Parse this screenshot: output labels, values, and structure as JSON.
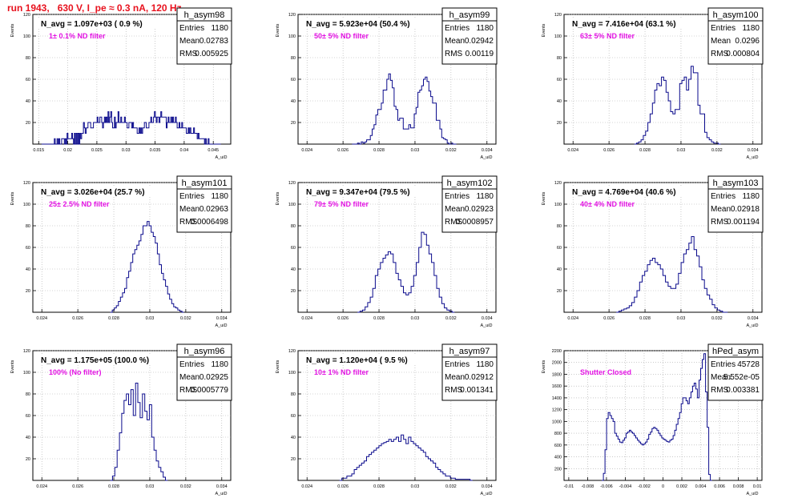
{
  "page": {
    "title": "run 1943,   630 V, I_pe ≈ 0.3 nA, 120 Hz"
  },
  "colors": {
    "histogram": "#0a0a8c",
    "annotation": "#e212e2",
    "title": "#e8121e",
    "grid": "#aaaaaa",
    "axis": "#000000"
  },
  "chart_data": [
    {
      "type": "histogram",
      "name": "h_asym98",
      "title": "N_avg = 1.097e+03 ( 0.9 %)",
      "note": "1± 0.1% ND filter",
      "ylabel": "Events",
      "xlabel": "A_uiD",
      "xlim": [
        0.014,
        0.048
      ],
      "ylim": [
        0,
        120
      ],
      "xticks": [
        0.015,
        0.02,
        0.025,
        0.03,
        0.035,
        0.04,
        0.045
      ],
      "xticklabels": [
        "0.015",
        "0.02",
        "0.025",
        "0.03",
        "0.035",
        "0.04",
        "0.045"
      ],
      "yticks": [
        20,
        40,
        60,
        80,
        100,
        120
      ],
      "yticklabels": [
        "20",
        "40",
        "60",
        "80",
        "100",
        "120"
      ],
      "stats": [
        {
          "label": "Entries",
          "value": "1180"
        },
        {
          "label": "Mean",
          "value": "0.02783"
        },
        {
          "label": "RMS",
          "value": "0.005925"
        }
      ],
      "bin_edges": [
        0.0155,
        0.0463
      ],
      "values": [
        0,
        0,
        0,
        0,
        0,
        0,
        0,
        0,
        0,
        0,
        0,
        0,
        0,
        0,
        5,
        0,
        0,
        5,
        0,
        5,
        0,
        0,
        5,
        5,
        5,
        0,
        5,
        0,
        10,
        5,
        5,
        5,
        5,
        10,
        5,
        0,
        10,
        0,
        10,
        0,
        10,
        0,
        10,
        5,
        10,
        10,
        20,
        15,
        10,
        15,
        15,
        20,
        20,
        20,
        15,
        15,
        15,
        20,
        20,
        20,
        20,
        25,
        20,
        20,
        25,
        25,
        20,
        15,
        20,
        25,
        20,
        25,
        20,
        30,
        20,
        25,
        30,
        20,
        15,
        15,
        25,
        15,
        20,
        20,
        30,
        20,
        20,
        25,
        20,
        20,
        20,
        25,
        20,
        20,
        15,
        15,
        20,
        20,
        20,
        15,
        20,
        15,
        15,
        15,
        15,
        10,
        10,
        15,
        10,
        15,
        10,
        15,
        15,
        20,
        20,
        15,
        15,
        15,
        20,
        20,
        25,
        20,
        20,
        25,
        30,
        25,
        20,
        25,
        25,
        20,
        25,
        30,
        25,
        25,
        25,
        25,
        25,
        15,
        20,
        25,
        20,
        20,
        25,
        20,
        25,
        20,
        20,
        25,
        20,
        15,
        15,
        20,
        15,
        15,
        20,
        15,
        15,
        15,
        15,
        10,
        10,
        15,
        10,
        15,
        10,
        10,
        10,
        15,
        10,
        10,
        10,
        5,
        10,
        5,
        5,
        5,
        5,
        5,
        5,
        0,
        5,
        0,
        0,
        5,
        0,
        0,
        0,
        0,
        0,
        0,
        0,
        0,
        0,
        0,
        0,
        0,
        0
      ]
    },
    {
      "type": "histogram",
      "name": "h_asym99",
      "title": "N_avg = 5.923e+04 (50.4 %)",
      "note": "50± 5% ND filter",
      "ylabel": "Events",
      "xlabel": "A_uiD",
      "xlim": [
        0.0235,
        0.0345
      ],
      "ylim": [
        0,
        120
      ],
      "xticks": [
        0.024,
        0.026,
        0.028,
        0.03,
        0.032,
        0.034
      ],
      "xticklabels": [
        "0.024",
        "0.026",
        "0.028",
        "0.03",
        "0.032",
        "0.034"
      ],
      "yticks": [
        20,
        40,
        60,
        80,
        100,
        120
      ],
      "yticklabels": [
        "20",
        "40",
        "60",
        "80",
        "100",
        "120"
      ],
      "stats": [
        {
          "label": "Entries",
          "value": "1180"
        },
        {
          "label": "Mean",
          "value": "0.02942"
        },
        {
          "label": "RMS",
          "value": "0.00119"
        }
      ],
      "bin_edges": [
        0.0265,
        0.0323
      ],
      "values": [
        0,
        0,
        0,
        1,
        0,
        2,
        1,
        2,
        4,
        4,
        8,
        14,
        18,
        27,
        32,
        32,
        38,
        50,
        50,
        60,
        65,
        59,
        52,
        35,
        32,
        22,
        24,
        24,
        14,
        14,
        14,
        18,
        15,
        15,
        28,
        34,
        48,
        50,
        54,
        60,
        62,
        58,
        49,
        44,
        38,
        38,
        22,
        22,
        14,
        6,
        5,
        4,
        1,
        0,
        1,
        0,
        0
      ]
    },
    {
      "type": "histogram",
      "name": "h_asym100",
      "title": "N_avg = 7.416e+04 (63.1 %)",
      "note": "63± 5% ND filter",
      "ylabel": "Events",
      "xlabel": "A_uiD",
      "xlim": [
        0.0235,
        0.0345
      ],
      "ylim": [
        0,
        120
      ],
      "xticks": [
        0.024,
        0.026,
        0.028,
        0.03,
        0.032,
        0.034
      ],
      "xticklabels": [
        "0.024",
        "0.026",
        "0.028",
        "0.03",
        "0.032",
        "0.034"
      ],
      "yticks": [
        20,
        40,
        60,
        80,
        100,
        120
      ],
      "yticklabels": [
        "20",
        "40",
        "60",
        "80",
        "100",
        "120"
      ],
      "stats": [
        {
          "label": "Entries",
          "value": "1180"
        },
        {
          "label": "Mean",
          "value": "0.0296"
        },
        {
          "label": "RMS",
          "value": "0.000804"
        }
      ],
      "bin_edges": [
        0.0274,
        0.0322
      ],
      "values": [
        0,
        1,
        2,
        4,
        8,
        12,
        20,
        28,
        38,
        50,
        56,
        54,
        62,
        59,
        48,
        40,
        30,
        28,
        32,
        32,
        56,
        59,
        62,
        50,
        60,
        72,
        66,
        66,
        36,
        28,
        28,
        11,
        6,
        4,
        2,
        1,
        1,
        0
      ]
    },
    {
      "type": "histogram",
      "name": "h_asym101",
      "title": "N_avg = 3.026e+04 (25.7 %)",
      "note": "25± 2.5% ND filter",
      "ylabel": "Events",
      "xlabel": "A_uiD",
      "xlim": [
        0.0235,
        0.0345
      ],
      "ylim": [
        0,
        120
      ],
      "xticks": [
        0.024,
        0.026,
        0.028,
        0.03,
        0.032,
        0.034
      ],
      "xticklabels": [
        "0.024",
        "0.026",
        "0.028",
        "0.03",
        "0.032",
        "0.034"
      ],
      "yticks": [
        20,
        40,
        60,
        80,
        100,
        120
      ],
      "yticklabels": [
        "20",
        "40",
        "60",
        "80",
        "100",
        "120"
      ],
      "stats": [
        {
          "label": "Entries",
          "value": "1180"
        },
        {
          "label": "Mean",
          "value": "0.02963"
        },
        {
          "label": "RMS",
          "value": "0.0006498"
        }
      ],
      "bin_edges": [
        0.0278,
        0.0319
      ],
      "values": [
        0,
        2,
        4,
        6,
        10,
        14,
        18,
        22,
        32,
        38,
        46,
        54,
        58,
        62,
        66,
        72,
        80,
        80,
        84,
        80,
        74,
        70,
        64,
        54,
        44,
        36,
        30,
        24,
        17,
        12,
        8,
        5,
        4,
        2,
        1,
        0
      ]
    },
    {
      "type": "histogram",
      "name": "h_asym102",
      "title": "N_avg = 9.347e+04 (79.5 %)",
      "note": "79± 5% ND filter",
      "ylabel": "Events",
      "xlabel": "A_uiD",
      "xlim": [
        0.0235,
        0.0345
      ],
      "ylim": [
        0,
        120
      ],
      "xticks": [
        0.024,
        0.026,
        0.028,
        0.03,
        0.032,
        0.034
      ],
      "xticklabels": [
        "0.024",
        "0.026",
        "0.028",
        "0.03",
        "0.032",
        "0.034"
      ],
      "yticks": [
        20,
        40,
        60,
        80,
        100,
        120
      ],
      "yticklabels": [
        "20",
        "40",
        "60",
        "80",
        "100",
        "120"
      ],
      "stats": [
        {
          "label": "Entries",
          "value": "1180"
        },
        {
          "label": "Mean",
          "value": "0.02923"
        },
        {
          "label": "RMS",
          "value": "0.0008957"
        }
      ],
      "bin_edges": [
        0.0268,
        0.0322
      ],
      "values": [
        0,
        1,
        2,
        5,
        9,
        14,
        22,
        34,
        40,
        46,
        50,
        53,
        56,
        54,
        46,
        36,
        30,
        24,
        18,
        16,
        18,
        24,
        34,
        46,
        60,
        74,
        72,
        62,
        54,
        46,
        34,
        22,
        14,
        8,
        4,
        2,
        1,
        0
      ]
    },
    {
      "type": "histogram",
      "name": "h_asym103",
      "title": "N_avg = 4.769e+04 (40.6 %)",
      "note": "40± 4% ND filter",
      "ylabel": "Events",
      "xlabel": "A_uiD",
      "xlim": [
        0.0235,
        0.0345
      ],
      "ylim": [
        0,
        120
      ],
      "xticks": [
        0.024,
        0.026,
        0.028,
        0.03,
        0.032,
        0.034
      ],
      "xticklabels": [
        "0.024",
        "0.026",
        "0.028",
        "0.03",
        "0.032",
        "0.034"
      ],
      "yticks": [
        20,
        40,
        60,
        80,
        100,
        120
      ],
      "yticklabels": [
        "20",
        "40",
        "60",
        "80",
        "100",
        "120"
      ],
      "stats": [
        {
          "label": "Entries",
          "value": "1180"
        },
        {
          "label": "Mean",
          "value": "0.02918"
        },
        {
          "label": "RMS",
          "value": "0.001194"
        }
      ],
      "bin_edges": [
        0.0264,
        0.0326
      ],
      "values": [
        0,
        1,
        2,
        3,
        4,
        6,
        9,
        14,
        20,
        28,
        34,
        38,
        44,
        48,
        50,
        46,
        44,
        40,
        34,
        28,
        24,
        22,
        22,
        26,
        36,
        46,
        54,
        58,
        64,
        70,
        58,
        52,
        42,
        30,
        22,
        16,
        12,
        7,
        4,
        2,
        1,
        0,
        0
      ]
    },
    {
      "type": "histogram",
      "name": "h_asym96",
      "title": "N_avg = 1.175e+05 (100.0 %)",
      "note": "100% (No filter)",
      "ylabel": "Events",
      "xlabel": "A_uiD",
      "xlim": [
        0.0235,
        0.0345
      ],
      "ylim": [
        0,
        120
      ],
      "xticks": [
        0.024,
        0.026,
        0.028,
        0.03,
        0.032,
        0.034
      ],
      "xticklabels": [
        "0.024",
        "0.026",
        "0.028",
        "0.03",
        "0.032",
        "0.034"
      ],
      "yticks": [
        20,
        40,
        60,
        80,
        100,
        120
      ],
      "yticklabels": [
        "20",
        "40",
        "60",
        "80",
        "100",
        "120"
      ],
      "stats": [
        {
          "label": "Entries",
          "value": "1180"
        },
        {
          "label": "Mean",
          "value": "0.02925"
        },
        {
          "label": "RMS",
          "value": "0.0005779"
        }
      ],
      "bin_edges": [
        0.0278,
        0.031
      ],
      "values": [
        0,
        4,
        12,
        28,
        44,
        62,
        74,
        80,
        70,
        84,
        60,
        90,
        72,
        58,
        80,
        64,
        56,
        70,
        40,
        28,
        18,
        12,
        8,
        3,
        0
      ]
    },
    {
      "type": "histogram",
      "name": "h_asym97",
      "title": "N_avg = 1.120e+04 ( 9.5 %)",
      "note": "10± 1% ND filter",
      "ylabel": "Events",
      "xlabel": "A_uiD",
      "xlim": [
        0.0235,
        0.0345
      ],
      "ylim": [
        0,
        120
      ],
      "xticks": [
        0.024,
        0.026,
        0.028,
        0.03,
        0.032,
        0.034
      ],
      "xticklabels": [
        "0.024",
        "0.026",
        "0.028",
        "0.03",
        "0.032",
        "0.034"
      ],
      "yticks": [
        20,
        40,
        60,
        80,
        100,
        120
      ],
      "yticklabels": [
        "20",
        "40",
        "60",
        "80",
        "100",
        "120"
      ],
      "stats": [
        {
          "label": "Entries",
          "value": "1180"
        },
        {
          "label": "Mean",
          "value": "0.02912"
        },
        {
          "label": "RMS",
          "value": "0.001341"
        }
      ],
      "bin_edges": [
        0.0258,
        0.0332
      ],
      "values": [
        0,
        2,
        2,
        4,
        4,
        6,
        10,
        12,
        14,
        16,
        18,
        22,
        24,
        26,
        28,
        30,
        32,
        34,
        35,
        36,
        38,
        36,
        38,
        40,
        36,
        42,
        38,
        34,
        40,
        36,
        34,
        32,
        30,
        28,
        26,
        22,
        20,
        18,
        16,
        12,
        10,
        8,
        6,
        4,
        4,
        2,
        2,
        1,
        1,
        1,
        1,
        1,
        1,
        0
      ]
    },
    {
      "type": "histogram",
      "name": "hPed_asym",
      "title": "",
      "note": "Shutter Closed",
      "ylabel": "Events",
      "xlabel": "A_uiD",
      "xlim": [
        -0.0105,
        0.0105
      ],
      "ylim": [
        0,
        2200
      ],
      "xticks": [
        -0.01,
        -0.008,
        -0.006,
        -0.004,
        -0.002,
        0,
        0.002,
        0.004,
        0.006,
        0.008,
        0.01
      ],
      "xticklabels": [
        "-0.01",
        "-0.008",
        "-0.006",
        "-0.004",
        "-0.002",
        "0",
        "0.002",
        "0.004",
        "0.006",
        "0.008",
        "0.01"
      ],
      "yticks": [
        200,
        400,
        600,
        800,
        1000,
        1200,
        1400,
        1600,
        1800,
        2000,
        2200
      ],
      "yticklabels": [
        "200",
        "400",
        "600",
        "800",
        "1000",
        "1200",
        "1400",
        "1600",
        "1800",
        "2000",
        "2200"
      ],
      "stats": [
        {
          "label": "Entries",
          "value": "45728"
        },
        {
          "label": "Mean",
          "value": "5.552e-05"
        },
        {
          "label": "RMS",
          "value": "0.003381"
        }
      ],
      "bin_edges": [
        -0.0065,
        0.0052
      ],
      "values": [
        0,
        120,
        520,
        1050,
        1150,
        1100,
        1050,
        1000,
        800,
        750,
        700,
        650,
        640,
        680,
        720,
        800,
        820,
        850,
        820,
        800,
        760,
        720,
        680,
        650,
        620,
        600,
        620,
        650,
        700,
        780,
        820,
        880,
        900,
        880,
        850,
        800,
        760,
        720,
        700,
        680,
        660,
        650,
        680,
        700,
        760,
        850,
        950,
        1050,
        1150,
        1300,
        1400,
        1400,
        1350,
        1300,
        1400,
        1500,
        1600,
        1650,
        1550,
        1400,
        1700,
        1900,
        2050,
        2150,
        1500,
        900,
        100,
        0
      ]
    }
  ]
}
